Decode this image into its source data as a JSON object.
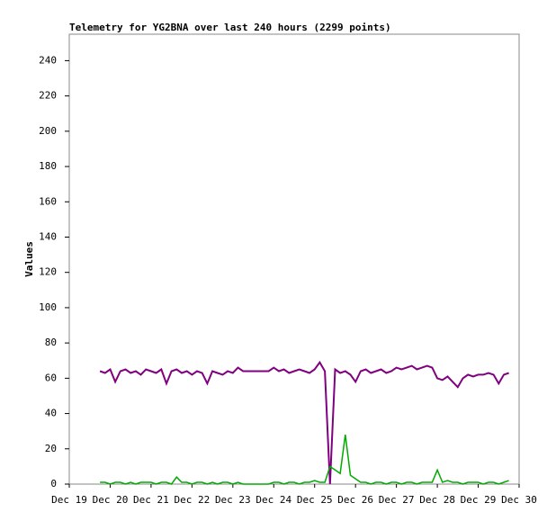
{
  "chart_data": {
    "type": "line",
    "title": "Telemetry for YG2BNA over last 240 hours (2299 points)",
    "y_label": "Values",
    "x": [
      18,
      21,
      24,
      27,
      30,
      33,
      36,
      39,
      42,
      45,
      48,
      51,
      54,
      57,
      60,
      63,
      66,
      69,
      72,
      75,
      78,
      81,
      84,
      87,
      90,
      93,
      96,
      99,
      102,
      105,
      108,
      111,
      114,
      117,
      120,
      123,
      126,
      129,
      132,
      135,
      138,
      141,
      144,
      147,
      150,
      153,
      156,
      159,
      162,
      165,
      168,
      171,
      174,
      177,
      180,
      183,
      186,
      189,
      192,
      195,
      198,
      201,
      204,
      207,
      210,
      213,
      216,
      219,
      222,
      225,
      228,
      231,
      234,
      237,
      240,
      243,
      246,
      249,
      252,
      255,
      258
    ],
    "series": [
      {
        "color": "#800080",
        "values": [
          64,
          63,
          65,
          58,
          64,
          65,
          63,
          64,
          62,
          65,
          64,
          63,
          65,
          57,
          64,
          65,
          63,
          64,
          62,
          64,
          63,
          57,
          64,
          63,
          62,
          64,
          63,
          66,
          64,
          64,
          64,
          64,
          64,
          64,
          66,
          64,
          65,
          63,
          64,
          65,
          64,
          63,
          65,
          69,
          64,
          0,
          65,
          63,
          64,
          62,
          58,
          64,
          65,
          63,
          64,
          65,
          63,
          64,
          66,
          65,
          66,
          67,
          65,
          66,
          67,
          66,
          60,
          59,
          61,
          58,
          55,
          60,
          62,
          61,
          62,
          62,
          63,
          62,
          57,
          62,
          63
        ]
      },
      {
        "color": "#00aa00",
        "values": [
          1,
          1,
          0,
          1,
          1,
          0,
          1,
          0,
          1,
          1,
          1,
          0,
          1,
          1,
          0,
          4,
          1,
          1,
          0,
          1,
          1,
          0,
          1,
          0,
          1,
          1,
          0,
          1,
          0,
          0,
          0,
          0,
          0,
          0,
          1,
          1,
          0,
          1,
          1,
          0,
          1,
          1,
          2,
          1,
          1,
          10,
          8,
          6,
          28,
          5,
          3,
          1,
          1,
          0,
          1,
          1,
          0,
          1,
          1,
          0,
          1,
          1,
          0,
          1,
          1,
          1,
          8,
          1,
          2,
          1,
          1,
          0,
          1,
          1,
          1,
          0,
          1,
          1,
          0,
          1,
          2
        ]
      }
    ],
    "xlim": [
      0,
      264
    ],
    "xticks": [
      {
        "value": 0,
        "label": "Dec 19"
      },
      {
        "value": 24,
        "label": "Dec 20"
      },
      {
        "value": 48,
        "label": "Dec 21"
      },
      {
        "value": 72,
        "label": "Dec 22"
      },
      {
        "value": 96,
        "label": "Dec 23"
      },
      {
        "value": 120,
        "label": "Dec 24"
      },
      {
        "value": 144,
        "label": "Dec 25"
      },
      {
        "value": 168,
        "label": "Dec 26"
      },
      {
        "value": 192,
        "label": "Dec 27"
      },
      {
        "value": 216,
        "label": "Dec 28"
      },
      {
        "value": 240,
        "label": "Dec 29"
      },
      {
        "value": 264,
        "label": "Dec 30"
      }
    ],
    "ylim": [
      0,
      255
    ],
    "yticks": [
      0,
      20,
      40,
      60,
      80,
      100,
      120,
      140,
      160,
      180,
      200,
      220,
      240
    ]
  }
}
